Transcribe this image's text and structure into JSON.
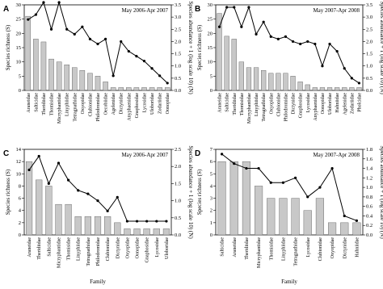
{
  "chart_data": [
    {
      "type": "bar",
      "panel_label": "A",
      "annotation": "May 2006-Apr 2007",
      "ylabel": "Species richness (S)",
      "y2label": "Species abundance + 1 (log scale 10) (N)",
      "categories": [
        "Araneidae",
        "Salticidae",
        "Theridiidae",
        "Thomisidae",
        "Micryphantidae",
        "Linyphiidae",
        "Tetragnathidae",
        "Oxyopidae",
        "Clubionidae",
        "Philodromidae",
        "Oecobiidae",
        "Agelenidae",
        "Dictynidae",
        "Anyphaenidae",
        "Gnaphosidae",
        "Lycosidae",
        "Uloboridae",
        "Zodariidae",
        "Oonopidae"
      ],
      "series": [
        {
          "color": "#c8c8c8",
          "values": [
            26,
            18,
            17,
            11,
            10,
            9,
            8,
            7,
            6,
            5,
            3,
            1,
            1,
            1,
            1,
            1,
            1,
            1,
            1
          ]
        },
        {
          "color": "#000000",
          "axis": "y2",
          "type": "line",
          "values": [
            2.9,
            3.1,
            3.6,
            2.5,
            3.6,
            2.5,
            2.3,
            2.6,
            2.1,
            1.9,
            2.1,
            0.6,
            2.0,
            1.6,
            1.4,
            1.2,
            0.9,
            0.6,
            0.3
          ]
        }
      ],
      "ylim": [
        0,
        30
      ],
      "yticks": [
        0,
        5,
        10,
        15,
        20,
        25,
        30
      ],
      "y2lim": [
        0,
        3.5
      ],
      "y2ticks": [
        {
          "value": 0,
          "label": "0.0"
        },
        0.5,
        {
          "value": 1,
          "label": "1.0"
        },
        1.5,
        {
          "value": 2,
          "label": "2.0"
        },
        2.5,
        {
          "value": 3,
          "label": "3.0"
        },
        3.5
      ]
    },
    {
      "type": "bar",
      "panel_label": "B",
      "annotation": "May 2007-Apr 2008",
      "ylabel": "Species richness (S)",
      "y2label": "Species abundance + 1 (log scale 10) (N)",
      "categories": [
        "Araneidae",
        "Salticidae",
        "Theridiidae",
        "Thomisidae",
        "Micryphantidae",
        "Linyphiidae",
        "Tetragnathidae",
        "Oxyopidae",
        "Clubionidae",
        "Philodromidae",
        "Dictynidae",
        "Gnaphosidae",
        "Lycosidae",
        "Anyphaenidae",
        "Oonopidae",
        "Uloboridae",
        "Hahniidae",
        "Agelenidae",
        "Zodariidae",
        "Pholcidae"
      ],
      "series": [
        {
          "color": "#c8c8c8",
          "values": [
            27,
            19,
            18,
            10,
            8,
            8,
            7,
            6,
            6,
            6,
            5,
            3,
            2,
            1,
            1,
            1,
            1,
            1,
            1,
            1
          ]
        },
        {
          "color": "#000000",
          "axis": "y2",
          "type": "line",
          "values": [
            2.6,
            3.4,
            3.4,
            2.6,
            3.4,
            2.3,
            2.8,
            2.2,
            2.1,
            2.2,
            2.0,
            1.9,
            2.0,
            1.9,
            1.0,
            1.9,
            1.6,
            0.9,
            0.5,
            0.3
          ]
        }
      ],
      "ylim": [
        0,
        30
      ],
      "yticks": [
        0,
        5,
        10,
        15,
        20,
        25,
        30
      ],
      "y2lim": [
        0,
        3.5
      ],
      "y2ticks": [
        {
          "value": 0,
          "label": "0.0"
        },
        0.5,
        {
          "value": 1,
          "label": "1.0"
        },
        1.5,
        {
          "value": 2,
          "label": "2.0"
        },
        2.5,
        {
          "value": 3,
          "label": "3.0"
        },
        3.5
      ]
    },
    {
      "type": "bar",
      "panel_label": "C",
      "annotation": "May 2006-Apr 2007",
      "xlabel": "Family",
      "ylabel": "Species richness (S)",
      "y2label": "Species abundance + 1 (log scale 10) (N)",
      "categories": [
        "Araneidae",
        "Theridiidae",
        "Salticidae",
        "Micryphantidae",
        "Thomisidae",
        "Linyphiidae",
        "Tetragnathidae",
        "Philodromidae",
        "Clubionidae",
        "Dictynidae",
        "Oxyopidae",
        "Oonopidae",
        "Gnaphosidae",
        "Lycosidae",
        "Uloboridae"
      ],
      "series": [
        {
          "color": "#c8c8c8",
          "values": [
            12,
            9,
            8,
            5,
            5,
            3,
            3,
            3,
            3,
            2,
            1,
            1,
            1,
            1,
            1
          ]
        },
        {
          "color": "#000000",
          "axis": "y2",
          "type": "line",
          "values": [
            1.9,
            2.3,
            1.5,
            2.1,
            1.6,
            1.3,
            1.2,
            1.0,
            0.7,
            1.1,
            0.4,
            0.4,
            0.4,
            0.4,
            0.4
          ]
        }
      ],
      "ylim": [
        0,
        14
      ],
      "yticks": [
        0,
        2,
        4,
        6,
        8,
        10,
        12,
        14
      ],
      "y2lim": [
        0,
        2.5
      ],
      "y2ticks": [
        {
          "value": 0,
          "label": "0.0"
        },
        0.5,
        {
          "value": 1,
          "label": "1.0"
        },
        1.5,
        {
          "value": 2,
          "label": "2.0"
        },
        2.5
      ]
    },
    {
      "type": "bar",
      "panel_label": "D",
      "annotation": "May 2007-Apr 2008",
      "xlabel": "Family",
      "ylabel": "Species richness (S)",
      "y2label": "Species abundance + 1 (log scale 10) (N)",
      "categories": [
        "Salticidae",
        "Araneidae",
        "Theridiidae",
        "Micryphantidae",
        "Thomisidae",
        "Linyphiidae",
        "Tetragnathidae",
        "Lycosidae",
        "Clubionidae",
        "Oxyopidae",
        "Dictynidae",
        "Hahniidae"
      ],
      "series": [
        {
          "color": "#c8c8c8",
          "values": [
            6,
            6,
            6,
            4,
            3,
            3,
            3,
            2,
            3,
            1,
            1,
            1
          ]
        },
        {
          "color": "#000000",
          "axis": "y2",
          "type": "line",
          "values": [
            1.7,
            1.5,
            1.4,
            1.4,
            1.1,
            1.1,
            1.2,
            0.8,
            1.0,
            1.4,
            0.4,
            0.3
          ]
        }
      ],
      "ylim": [
        0,
        7
      ],
      "yticks": [
        0,
        1,
        2,
        3,
        4,
        5,
        6,
        7
      ],
      "y2lim": [
        0,
        1.8
      ],
      "y2ticks": [
        {
          "value": 0,
          "label": "0.0"
        },
        0.2,
        0.4,
        0.6,
        0.8,
        {
          "value": 1,
          "label": "1.0"
        },
        1.2,
        1.4,
        1.6,
        1.8
      ]
    }
  ]
}
